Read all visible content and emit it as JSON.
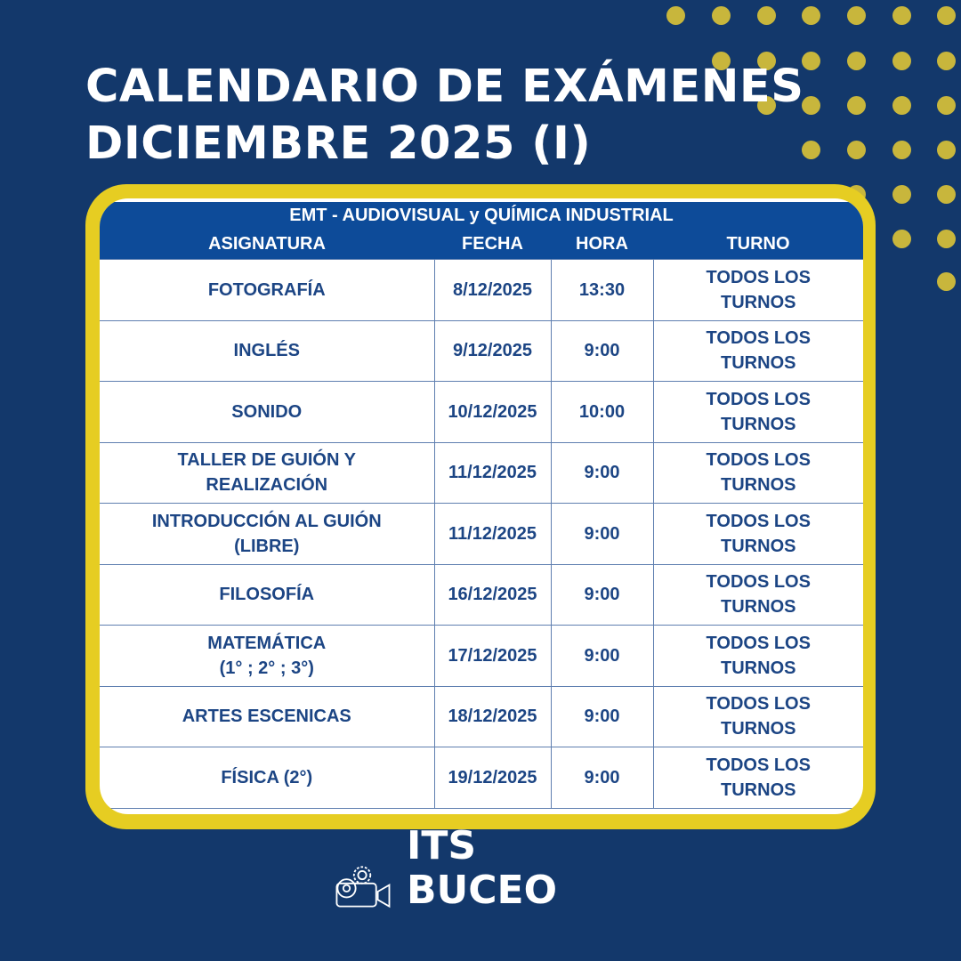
{
  "title": {
    "line1": "CALENDARIO DE EXÁMENES",
    "line2": "DICIEMBRE 2025 (I)"
  },
  "table": {
    "caption": "EMT - AUDIOVISUAL y QUÍMICA INDUSTRIAL",
    "headers": [
      "ASIGNATURA",
      "FECHA",
      "HORA",
      "TURNO"
    ],
    "rows": [
      {
        "asignatura": [
          "FOTOGRAFÍA"
        ],
        "fecha": "8/12/2025",
        "hora": "13:30",
        "turno": [
          "TODOS LOS",
          "TURNOS"
        ]
      },
      {
        "asignatura": [
          "INGLÉS"
        ],
        "fecha": "9/12/2025",
        "hora": "9:00",
        "turno": [
          "TODOS LOS",
          "TURNOS"
        ]
      },
      {
        "asignatura": [
          "SONIDO"
        ],
        "fecha": "10/12/2025",
        "hora": "10:00",
        "turno": [
          "TODOS LOS",
          "TURNOS"
        ]
      },
      {
        "asignatura": [
          "TALLER DE GUIÓN Y",
          "REALIZACIÓN"
        ],
        "fecha": "11/12/2025",
        "hora": "9:00",
        "turno": [
          "TODOS LOS",
          "TURNOS"
        ]
      },
      {
        "asignatura": [
          "INTRODUCCIÓN AL GUIÓN",
          "(LIBRE)"
        ],
        "fecha": "11/12/2025",
        "hora": "9:00",
        "turno": [
          "TODOS LOS",
          "TURNOS"
        ]
      },
      {
        "asignatura": [
          "FILOSOFÍA"
        ],
        "fecha": "16/12/2025",
        "hora": "9:00",
        "turno": [
          "TODOS LOS",
          "TURNOS"
        ]
      },
      {
        "asignatura": [
          "MATEMÁTICA",
          "(1° ; 2° ; 3°)"
        ],
        "fecha": "17/12/2025",
        "hora": "9:00",
        "turno": [
          "TODOS LOS",
          "TURNOS"
        ]
      },
      {
        "asignatura": [
          "ARTES ESCENICAS"
        ],
        "fecha": "18/12/2025",
        "hora": "9:00",
        "turno": [
          "TODOS LOS",
          "TURNOS"
        ]
      },
      {
        "asignatura": [
          "FÍSICA (2°)"
        ],
        "fecha": "19/12/2025",
        "hora": "9:00",
        "turno": [
          "TODOS LOS",
          "TURNOS"
        ]
      }
    ]
  },
  "logo": {
    "text": "ITS BUCEO",
    "icons": [
      "camera-gear-icon",
      "test-tube-icon",
      "snowflake-icon"
    ]
  },
  "colors": {
    "background": "#13386b",
    "accent_yellow": "#e6cd22",
    "dots": "#c8b63c",
    "header": "#0d4b99",
    "text": "#1c4584"
  }
}
